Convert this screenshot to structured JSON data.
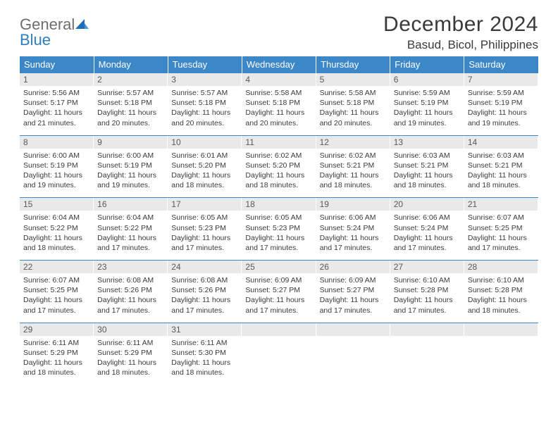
{
  "brand": {
    "name1": "General",
    "name2": "Blue"
  },
  "colors": {
    "header_bg": "#3b87c8",
    "header_text": "#ffffff",
    "daynum_bg": "#e9e9e9",
    "daynum_text": "#595959",
    "body_text": "#3a3a3a",
    "row_border": "#3b87c8",
    "logo_gray": "#6d6d6d",
    "logo_blue": "#2f7ec2",
    "page_bg": "#ffffff"
  },
  "typography": {
    "title_fontsize": 30,
    "location_fontsize": 17,
    "weekday_fontsize": 13,
    "daynum_fontsize": 12,
    "body_fontsize": 10.5,
    "font_family": "Arial"
  },
  "title": "December 2024",
  "location": "Basud, Bicol, Philippines",
  "weekdays": [
    "Sunday",
    "Monday",
    "Tuesday",
    "Wednesday",
    "Thursday",
    "Friday",
    "Saturday"
  ],
  "weeks": [
    [
      {
        "n": "1",
        "sr": "5:56 AM",
        "ss": "5:17 PM",
        "dl": "11 hours and 21 minutes."
      },
      {
        "n": "2",
        "sr": "5:57 AM",
        "ss": "5:18 PM",
        "dl": "11 hours and 20 minutes."
      },
      {
        "n": "3",
        "sr": "5:57 AM",
        "ss": "5:18 PM",
        "dl": "11 hours and 20 minutes."
      },
      {
        "n": "4",
        "sr": "5:58 AM",
        "ss": "5:18 PM",
        "dl": "11 hours and 20 minutes."
      },
      {
        "n": "5",
        "sr": "5:58 AM",
        "ss": "5:18 PM",
        "dl": "11 hours and 20 minutes."
      },
      {
        "n": "6",
        "sr": "5:59 AM",
        "ss": "5:19 PM",
        "dl": "11 hours and 19 minutes."
      },
      {
        "n": "7",
        "sr": "5:59 AM",
        "ss": "5:19 PM",
        "dl": "11 hours and 19 minutes."
      }
    ],
    [
      {
        "n": "8",
        "sr": "6:00 AM",
        "ss": "5:19 PM",
        "dl": "11 hours and 19 minutes."
      },
      {
        "n": "9",
        "sr": "6:00 AM",
        "ss": "5:19 PM",
        "dl": "11 hours and 19 minutes."
      },
      {
        "n": "10",
        "sr": "6:01 AM",
        "ss": "5:20 PM",
        "dl": "11 hours and 18 minutes."
      },
      {
        "n": "11",
        "sr": "6:02 AM",
        "ss": "5:20 PM",
        "dl": "11 hours and 18 minutes."
      },
      {
        "n": "12",
        "sr": "6:02 AM",
        "ss": "5:21 PM",
        "dl": "11 hours and 18 minutes."
      },
      {
        "n": "13",
        "sr": "6:03 AM",
        "ss": "5:21 PM",
        "dl": "11 hours and 18 minutes."
      },
      {
        "n": "14",
        "sr": "6:03 AM",
        "ss": "5:21 PM",
        "dl": "11 hours and 18 minutes."
      }
    ],
    [
      {
        "n": "15",
        "sr": "6:04 AM",
        "ss": "5:22 PM",
        "dl": "11 hours and 18 minutes."
      },
      {
        "n": "16",
        "sr": "6:04 AM",
        "ss": "5:22 PM",
        "dl": "11 hours and 17 minutes."
      },
      {
        "n": "17",
        "sr": "6:05 AM",
        "ss": "5:23 PM",
        "dl": "11 hours and 17 minutes."
      },
      {
        "n": "18",
        "sr": "6:05 AM",
        "ss": "5:23 PM",
        "dl": "11 hours and 17 minutes."
      },
      {
        "n": "19",
        "sr": "6:06 AM",
        "ss": "5:24 PM",
        "dl": "11 hours and 17 minutes."
      },
      {
        "n": "20",
        "sr": "6:06 AM",
        "ss": "5:24 PM",
        "dl": "11 hours and 17 minutes."
      },
      {
        "n": "21",
        "sr": "6:07 AM",
        "ss": "5:25 PM",
        "dl": "11 hours and 17 minutes."
      }
    ],
    [
      {
        "n": "22",
        "sr": "6:07 AM",
        "ss": "5:25 PM",
        "dl": "11 hours and 17 minutes."
      },
      {
        "n": "23",
        "sr": "6:08 AM",
        "ss": "5:26 PM",
        "dl": "11 hours and 17 minutes."
      },
      {
        "n": "24",
        "sr": "6:08 AM",
        "ss": "5:26 PM",
        "dl": "11 hours and 17 minutes."
      },
      {
        "n": "25",
        "sr": "6:09 AM",
        "ss": "5:27 PM",
        "dl": "11 hours and 17 minutes."
      },
      {
        "n": "26",
        "sr": "6:09 AM",
        "ss": "5:27 PM",
        "dl": "11 hours and 17 minutes."
      },
      {
        "n": "27",
        "sr": "6:10 AM",
        "ss": "5:28 PM",
        "dl": "11 hours and 17 minutes."
      },
      {
        "n": "28",
        "sr": "6:10 AM",
        "ss": "5:28 PM",
        "dl": "11 hours and 18 minutes."
      }
    ],
    [
      {
        "n": "29",
        "sr": "6:11 AM",
        "ss": "5:29 PM",
        "dl": "11 hours and 18 minutes."
      },
      {
        "n": "30",
        "sr": "6:11 AM",
        "ss": "5:29 PM",
        "dl": "11 hours and 18 minutes."
      },
      {
        "n": "31",
        "sr": "6:11 AM",
        "ss": "5:30 PM",
        "dl": "11 hours and 18 minutes."
      },
      null,
      null,
      null,
      null
    ]
  ],
  "labels": {
    "sunrise": "Sunrise:",
    "sunset": "Sunset:",
    "daylight": "Daylight:"
  }
}
